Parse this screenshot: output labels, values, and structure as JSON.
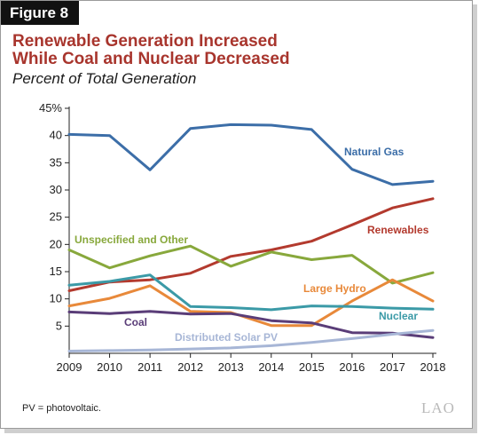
{
  "figure_label": "Figure 8",
  "footnote": "PV = photovoltaic.",
  "logo": "LAO",
  "colors": {
    "title": "#a8352d",
    "natural_gas": "#3c6ea8",
    "renewables": "#b33a2e",
    "unspecified": "#88a83c",
    "large_hydro": "#e8893a",
    "nuclear": "#3b9aa7",
    "coal": "#5a3d78",
    "solar": "#a7b6d6"
  },
  "chart_data": {
    "type": "line",
    "title": "Renewable Generation Increased While Coal and Nuclear Decreased",
    "title_lines": [
      "Renewable Generation Increased",
      "While Coal and Nuclear Decreased"
    ],
    "subtitle": "Percent of Total Generation",
    "xlabel": "",
    "ylabel": "",
    "x": [
      2009,
      2010,
      2011,
      2012,
      2013,
      2014,
      2015,
      2016,
      2017,
      2018
    ],
    "x_tick_labels": [
      "2009",
      "2010",
      "2011",
      "2012",
      "2013",
      "2014",
      "2015",
      "2016",
      "2017",
      "2018"
    ],
    "ylim": [
      0,
      45
    ],
    "y_ticks": [
      5,
      10,
      15,
      20,
      25,
      30,
      35,
      40,
      45
    ],
    "y_tick_labels": [
      "5",
      "10",
      "15",
      "20",
      "25",
      "30",
      "35",
      "40",
      "45%"
    ],
    "grid": false,
    "legend": "inline labels",
    "series": [
      {
        "name": "Natural Gas",
        "key": "natural_gas",
        "values": [
          40.2,
          40.0,
          33.7,
          41.3,
          42.0,
          41.9,
          41.1,
          33.8,
          31.0,
          31.6
        ]
      },
      {
        "name": "Renewables",
        "key": "renewables",
        "values": [
          11.5,
          13.1,
          13.5,
          14.7,
          17.8,
          19.0,
          20.6,
          23.6,
          26.7,
          28.4
        ]
      },
      {
        "name": "Unspecified and Other",
        "key": "unspecified",
        "values": [
          19.0,
          15.7,
          17.9,
          19.7,
          16.0,
          18.6,
          17.2,
          18.0,
          12.9,
          14.8
        ]
      },
      {
        "name": "Large Hydro",
        "key": "large_hydro",
        "values": [
          8.7,
          10.1,
          12.4,
          7.7,
          7.5,
          5.1,
          5.1,
          9.6,
          13.5,
          9.6
        ]
      },
      {
        "name": "Nuclear",
        "key": "nuclear",
        "values": [
          12.5,
          13.2,
          14.4,
          8.6,
          8.4,
          8.0,
          8.7,
          8.6,
          8.3,
          8.1
        ]
      },
      {
        "name": "Coal",
        "key": "coal",
        "values": [
          7.6,
          7.3,
          7.7,
          7.2,
          7.3,
          6.0,
          5.6,
          3.8,
          3.7,
          2.9
        ]
      },
      {
        "name": "Distributed Solar PV",
        "key": "solar",
        "values": [
          0.4,
          0.5,
          0.6,
          0.8,
          1.0,
          1.4,
          2.0,
          2.7,
          3.5,
          4.2
        ]
      }
    ]
  }
}
